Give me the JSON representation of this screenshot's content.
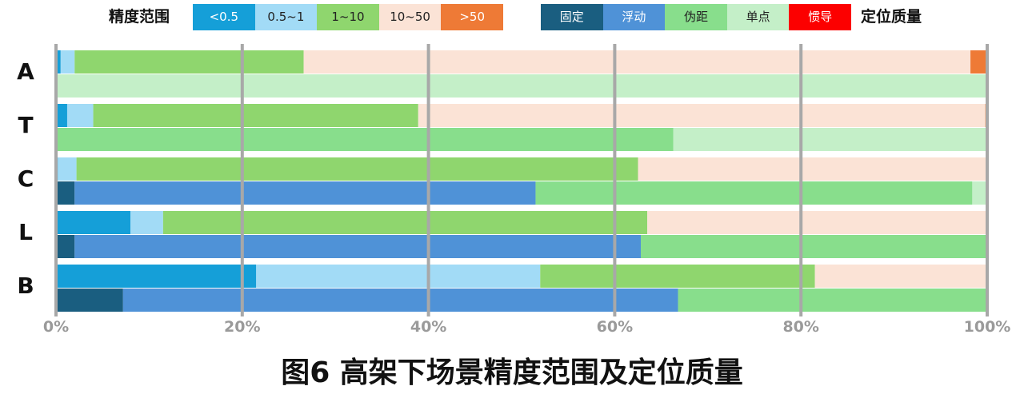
{
  "legend": {
    "accuracy_title": "精度范围",
    "accuracy_items": [
      {
        "label": "<0.5",
        "color": "#159fd8",
        "text_color": "#ffffff"
      },
      {
        "label": "0.5~1",
        "color": "#a2dbf6",
        "text_color": "#222222"
      },
      {
        "label": "1~10",
        "color": "#8fd66e",
        "text_color": "#222222"
      },
      {
        "label": "10~50",
        "color": "#fbe3d6",
        "text_color": "#222222"
      },
      {
        "label": ">50",
        "color": "#ee7a36",
        "text_color": "#ffffff"
      }
    ],
    "quality_title": "定位质量",
    "quality_items": [
      {
        "label": "固定",
        "color": "#1a5e80",
        "text_color": "#ffffff"
      },
      {
        "label": "浮动",
        "color": "#4f92d7",
        "text_color": "#ffffff"
      },
      {
        "label": "伪距",
        "color": "#88de8c",
        "text_color": "#222222"
      },
      {
        "label": "单点",
        "color": "#c4efc8",
        "text_color": "#222222"
      },
      {
        "label": "惯导",
        "color": "#fc0000",
        "text_color": "#ffffff"
      }
    ]
  },
  "chart_data": {
    "type": "bar",
    "orientation": "horizontal",
    "stacked": true,
    "normalized": true,
    "categories": [
      "A",
      "T",
      "C",
      "L",
      "B"
    ],
    "xlim": [
      0,
      100
    ],
    "x_ticks": [
      "0%",
      "20%",
      "40%",
      "60%",
      "80%",
      "100%"
    ],
    "grid": true,
    "accuracy_series": [
      {
        "name": "<0.5",
        "values": [
          0.5,
          1.2,
          0.2,
          8.0,
          21.5
        ]
      },
      {
        "name": "0.5~1",
        "values": [
          1.5,
          2.8,
          2.0,
          3.5,
          30.5
        ]
      },
      {
        "name": "1~10",
        "values": [
          24.6,
          34.9,
          60.3,
          52.0,
          29.5
        ]
      },
      {
        "name": "10~50",
        "values": [
          71.6,
          60.9,
          37.5,
          36.5,
          18.5
        ]
      },
      {
        "name": ">50",
        "values": [
          1.8,
          0.2,
          0,
          0,
          0
        ]
      }
    ],
    "quality_series": [
      {
        "name": "固定",
        "values": [
          0,
          0,
          2.0,
          2.0,
          7.2
        ]
      },
      {
        "name": "浮动",
        "values": [
          0,
          0,
          49.5,
          60.8,
          59.6
        ]
      },
      {
        "name": "伪距",
        "values": [
          0,
          66.3,
          46.9,
          37.2,
          33.2
        ]
      },
      {
        "name": "单点",
        "values": [
          100,
          33.7,
          1.6,
          0,
          0
        ]
      },
      {
        "name": "惯导",
        "values": [
          0,
          0,
          0,
          0,
          0
        ]
      }
    ]
  },
  "caption": "图6 高架下场景精度范围及定位质量"
}
